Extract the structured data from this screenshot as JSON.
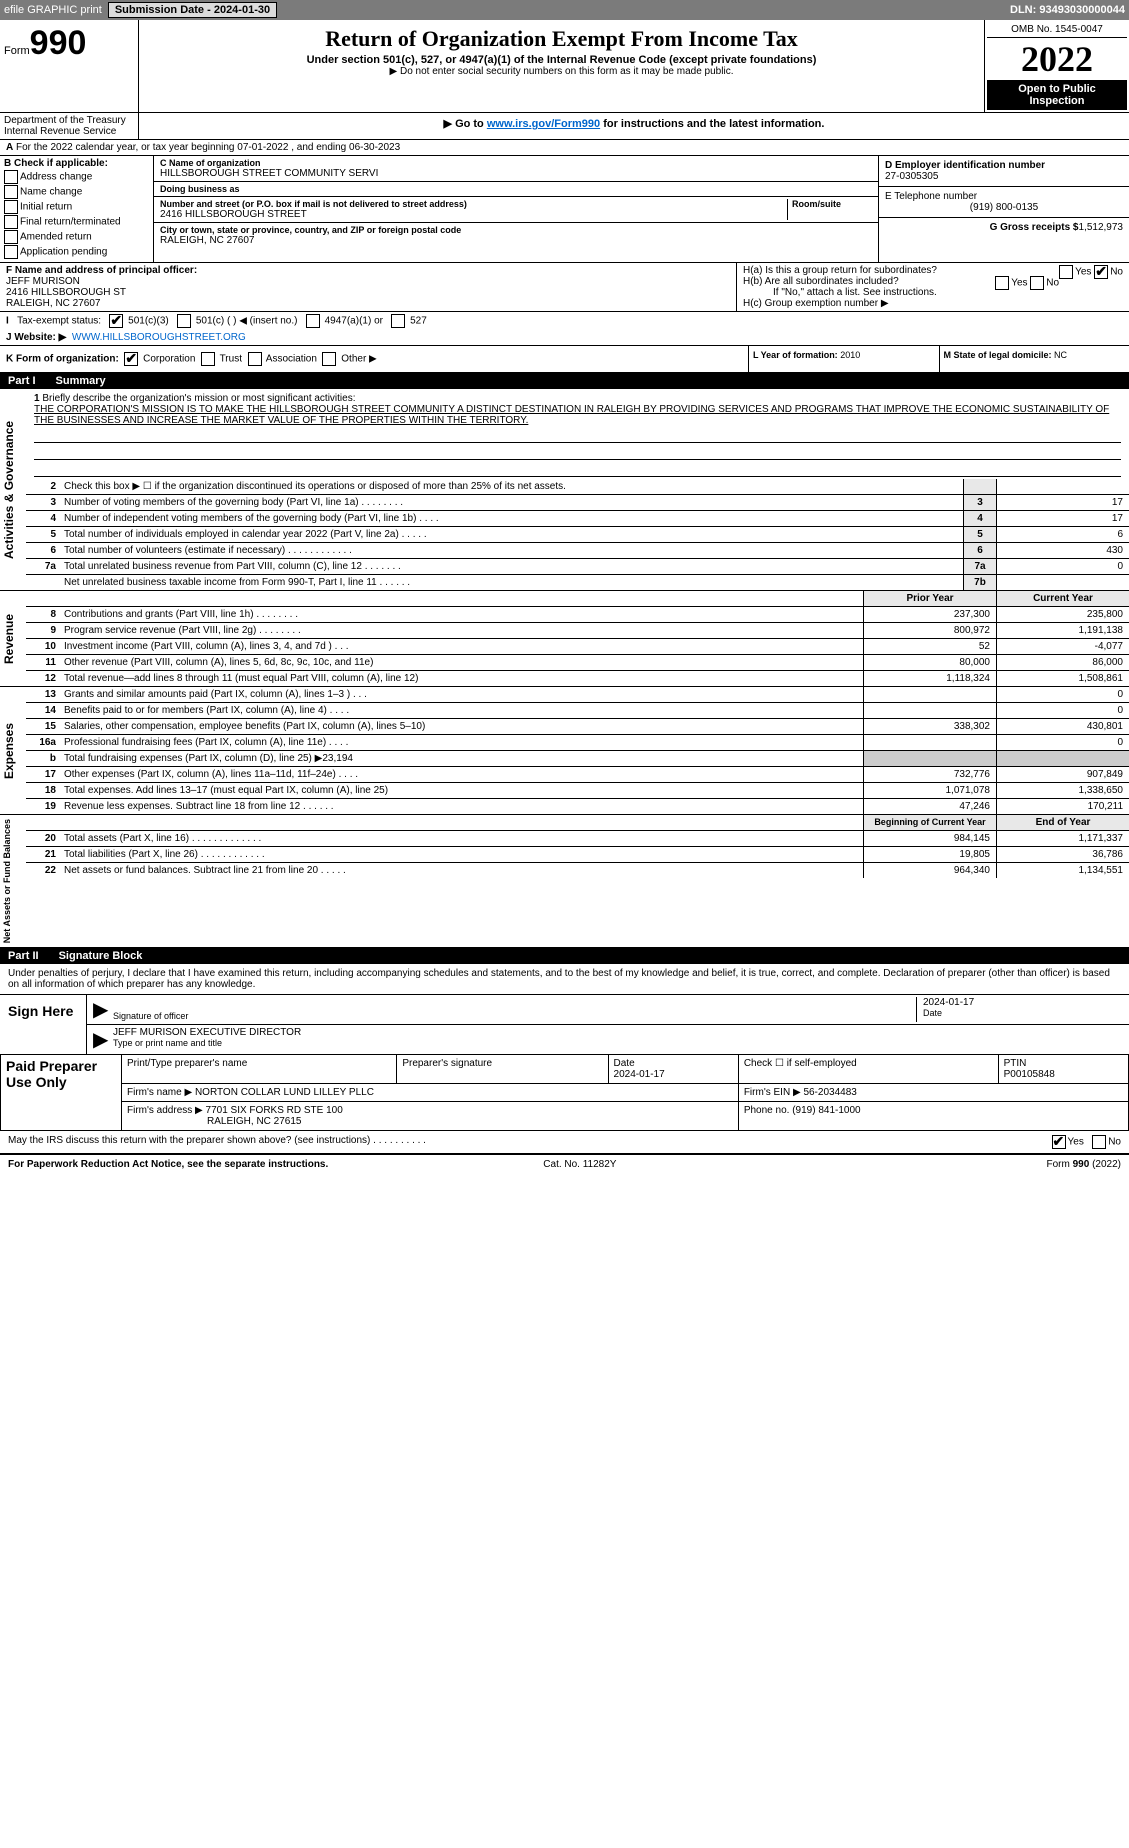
{
  "topbar": {
    "efile": "efile GRAPHIC print",
    "submission_label": "Submission Date - 2024-01-30",
    "dln": "DLN: 93493030000044"
  },
  "header": {
    "form_word": "Form",
    "form_no": "990",
    "title": "Return of Organization Exempt From Income Tax",
    "subtitle": "Under section 501(c), 527, or 4947(a)(1) of the Internal Revenue Code (except private foundations)",
    "note1": "▶ Do not enter social security numbers on this form as it may be made public.",
    "note2_pre": "▶ Go to ",
    "note2_link": "www.irs.gov/Form990",
    "note2_post": " for instructions and the latest information.",
    "omb": "OMB No. 1545-0047",
    "year": "2022",
    "open": "Open to Public Inspection",
    "dept": "Department of the Treasury Internal Revenue Service"
  },
  "line_a": "For the 2022 calendar year, or tax year beginning 07-01-2022   , and ending 06-30-2023",
  "col_b": {
    "label": "B Check if applicable:",
    "opts": [
      "Address change",
      "Name change",
      "Initial return",
      "Final return/terminated",
      "Amended return",
      "Application pending"
    ]
  },
  "col_c": {
    "name_label": "C Name of organization",
    "name": "HILLSBOROUGH STREET COMMUNITY SERVI",
    "dba_label": "Doing business as",
    "dba": "",
    "street_label": "Number and street (or P.O. box if mail is not delivered to street address)",
    "room_label": "Room/suite",
    "street": "2416 HILLSBOROUGH STREET",
    "city_label": "City or town, state or province, country, and ZIP or foreign postal code",
    "city": "RALEIGH, NC  27607"
  },
  "col_d": {
    "ein_label": "D Employer identification number",
    "ein": "27-0305305",
    "phone_label": "E Telephone number",
    "phone": "(919) 800-0135",
    "gross_label": "G Gross receipts $",
    "gross": "1,512,973"
  },
  "row_f": {
    "label": "F  Name and address of principal officer:",
    "name": "JEFF MURISON",
    "addr1": "2416 HILLSBOROUGH ST",
    "addr2": "RALEIGH, NC  27607"
  },
  "row_h": {
    "ha": "H(a)  Is this a group return for subordinates?",
    "hb": "H(b)  Are all subordinates included?",
    "hb_note": "If \"No,\" attach a list. See instructions.",
    "hc": "H(c)  Group exemption number ▶",
    "yes": "Yes",
    "no": "No"
  },
  "row_i": {
    "label": "Tax-exempt status:",
    "o1": "501(c)(3)",
    "o2": "501(c) (   ) ◀ (insert no.)",
    "o3": "4947(a)(1) or",
    "o4": "527"
  },
  "row_j": {
    "label": "J    Website: ▶",
    "val": "WWW.HILLSBOROUGHSTREET.ORG"
  },
  "row_k": {
    "label": "K Form of organization:",
    "o1": "Corporation",
    "o2": "Trust",
    "o3": "Association",
    "o4": "Other ▶",
    "l_label": "L Year of formation:",
    "l_val": "2010",
    "m_label": "M State of legal domicile:",
    "m_val": "NC"
  },
  "part1": {
    "num": "Part I",
    "title": "Summary"
  },
  "tabs": {
    "ag": "Activities & Governance",
    "rev": "Revenue",
    "exp": "Expenses",
    "na": "Net Assets or Fund Balances"
  },
  "q1": {
    "n": "1",
    "t": "Briefly describe the organization's mission or most significant activities:",
    "mission": "THE CORPORATION'S MISSION IS TO MAKE THE HILLSBOROUGH STREET COMMUNITY A DISTINCT DESTINATION IN RALEIGH BY PROVIDING SERVICES AND PROGRAMS THAT IMPROVE THE ECONOMIC SUSTAINABILITY OF THE BUSINESSES AND INCREASE THE MARKET VALUE OF THE PROPERTIES WITHIN THE TERRITORY."
  },
  "ag_rows": [
    {
      "n": "2",
      "t": "Check this box ▶ ☐  if the organization discontinued its operations or disposed of more than 25% of its net assets.",
      "box": "",
      "v": ""
    },
    {
      "n": "3",
      "t": "Number of voting members of the governing body (Part VI, line 1a)  .    .    .    .    .    .    .    .",
      "box": "3",
      "v": "17"
    },
    {
      "n": "4",
      "t": "Number of independent voting members of the governing body (Part VI, line 1b)   .    .    .    .",
      "box": "4",
      "v": "17"
    },
    {
      "n": "5",
      "t": "Total number of individuals employed in calendar year 2022 (Part V, line 2a)   .    .    .    .    .",
      "box": "5",
      "v": "6"
    },
    {
      "n": "6",
      "t": "Total number of volunteers (estimate if necessary)    .    .    .    .    .    .    .    .    .    .    .    .",
      "box": "6",
      "v": "430"
    },
    {
      "n": "7a",
      "t": "Total unrelated business revenue from Part VIII, column (C), line 12   .    .    .    .    .    .    .",
      "box": "7a",
      "v": "0"
    },
    {
      "n": "",
      "t": "Net unrelated business taxable income from Form 990-T, Part I, line 11   .    .    .    .    .    .",
      "box": "7b",
      "v": ""
    }
  ],
  "col_hdr": {
    "prior": "Prior Year",
    "current": "Current Year"
  },
  "rev_rows": [
    {
      "n": "8",
      "t": "Contributions and grants (Part VIII, line 1h)    .    .    .    .    .    .    .    .",
      "p": "237,300",
      "c": "235,800"
    },
    {
      "n": "9",
      "t": "Program service revenue (Part VIII, line 2g)    .    .    .    .    .    .    .    .",
      "p": "800,972",
      "c": "1,191,138"
    },
    {
      "n": "10",
      "t": "Investment income (Part VIII, column (A), lines 3, 4, and 7d )    .    .    .",
      "p": "52",
      "c": "-4,077"
    },
    {
      "n": "11",
      "t": "Other revenue (Part VIII, column (A), lines 5, 6d, 8c, 9c, 10c, and 11e)",
      "p": "80,000",
      "c": "86,000"
    },
    {
      "n": "12",
      "t": "Total revenue—add lines 8 through 11 (must equal Part VIII, column (A), line 12)",
      "p": "1,118,324",
      "c": "1,508,861"
    }
  ],
  "exp_rows": [
    {
      "n": "13",
      "t": "Grants and similar amounts paid (Part IX, column (A), lines 1–3 )   .    .    .",
      "p": "",
      "c": "0"
    },
    {
      "n": "14",
      "t": "Benefits paid to or for members (Part IX, column (A), line 4)   .    .    .    .",
      "p": "",
      "c": "0"
    },
    {
      "n": "15",
      "t": "Salaries, other compensation, employee benefits (Part IX, column (A), lines 5–10)",
      "p": "338,302",
      "c": "430,801"
    },
    {
      "n": "16a",
      "t": "Professional fundraising fees (Part IX, column (A), line 11e)   .    .    .    .",
      "p": "",
      "c": "0"
    },
    {
      "n": "b",
      "t": "Total fundraising expenses (Part IX, column (D), line 25) ▶23,194",
      "p": "__shade__",
      "c": "__shade__"
    },
    {
      "n": "17",
      "t": "Other expenses (Part IX, column (A), lines 11a–11d, 11f–24e)   .    .    .    .",
      "p": "732,776",
      "c": "907,849"
    },
    {
      "n": "18",
      "t": "Total expenses. Add lines 13–17 (must equal Part IX, column (A), line 25)",
      "p": "1,071,078",
      "c": "1,338,650"
    },
    {
      "n": "19",
      "t": "Revenue less expenses. Subtract line 18 from line 12   .    .    .    .    .    .",
      "p": "47,246",
      "c": "170,211"
    }
  ],
  "na_hdr": {
    "b": "Beginning of Current Year",
    "e": "End of Year"
  },
  "na_rows": [
    {
      "n": "20",
      "t": "Total assets (Part X, line 16)   .    .    .    .    .    .    .    .    .    .    .    .    .",
      "p": "984,145",
      "c": "1,171,337"
    },
    {
      "n": "21",
      "t": "Total liabilities (Part X, line 26)   .    .    .    .    .    .    .    .    .    .    .    .",
      "p": "19,805",
      "c": "36,786"
    },
    {
      "n": "22",
      "t": "Net assets or fund balances. Subtract line 21 from line 20   .    .    .    .    .",
      "p": "964,340",
      "c": "1,134,551"
    }
  ],
  "part2": {
    "num": "Part II",
    "title": "Signature Block"
  },
  "sig": {
    "decl": "Under penalties of perjury, I declare that I have examined this return, including accompanying schedules and statements, and to the best of my knowledge and belief, it is true, correct, and complete. Declaration of preparer (other than officer) is based on all information of which preparer has any knowledge.",
    "sign_here": "Sign Here",
    "sig_label": "Signature of officer",
    "date_label": "Date",
    "date": "2024-01-17",
    "name": "JEFF MURISON  EXECUTIVE DIRECTOR",
    "name_label": "Type or print name and title"
  },
  "prep": {
    "title": "Paid Preparer Use Only",
    "h1": "Print/Type preparer's name",
    "h2": "Preparer's signature",
    "h3": "Date",
    "h4": "Check ☐ if self-employed",
    "h5": "PTIN",
    "date": "2024-01-17",
    "ptin": "P00105848",
    "firm_name_l": "Firm's name    ▶",
    "firm_name": "NORTON COLLAR LUND LILLEY PLLC",
    "firm_ein_l": "Firm's EIN ▶",
    "firm_ein": "56-2034483",
    "firm_addr_l": "Firm's address ▶",
    "firm_addr1": "7701 SIX FORKS RD STE 100",
    "firm_addr2": "RALEIGH, NC  27615",
    "phone_l": "Phone no.",
    "phone": "(919) 841-1000"
  },
  "discuss": {
    "t": "May the IRS discuss this return with the preparer shown above? (see instructions)    .    .    .    .    .    .    .    .    .    .",
    "yes": "Yes",
    "no": "No"
  },
  "footer": {
    "l": "For Paperwork Reduction Act Notice, see the separate instructions.",
    "m": "Cat. No. 11282Y",
    "r": "Form 990 (2022)"
  }
}
